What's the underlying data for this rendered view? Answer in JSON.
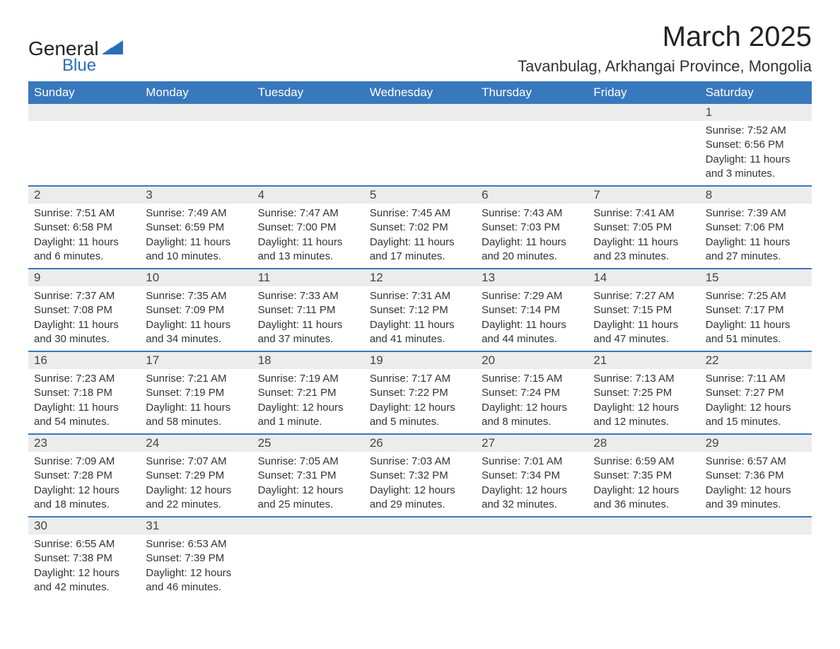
{
  "brand": {
    "text_general": "General",
    "text_blue": "Blue",
    "shape_color": "#2a6eb8",
    "text_color": "#222222"
  },
  "header": {
    "month_title": "March 2025",
    "location": "Tavanbulag, Arkhangai Province, Mongolia"
  },
  "colors": {
    "header_bg": "#3878bd",
    "header_text": "#ffffff",
    "row_divider": "#3878bd",
    "daynum_bg": "#ececec",
    "body_text": "#333333",
    "background": "#ffffff"
  },
  "typography": {
    "month_title_pt": 30,
    "location_pt": 16,
    "weekday_pt": 13,
    "daynum_pt": 13,
    "cell_pt": 11
  },
  "calendar": {
    "type": "table",
    "weekdays": [
      "Sunday",
      "Monday",
      "Tuesday",
      "Wednesday",
      "Thursday",
      "Friday",
      "Saturday"
    ],
    "weeks": [
      [
        null,
        null,
        null,
        null,
        null,
        null,
        {
          "day": "1",
          "sunrise": "7:52 AM",
          "sunset": "6:56 PM",
          "daylight": "11 hours and 3 minutes."
        }
      ],
      [
        {
          "day": "2",
          "sunrise": "7:51 AM",
          "sunset": "6:58 PM",
          "daylight": "11 hours and 6 minutes."
        },
        {
          "day": "3",
          "sunrise": "7:49 AM",
          "sunset": "6:59 PM",
          "daylight": "11 hours and 10 minutes."
        },
        {
          "day": "4",
          "sunrise": "7:47 AM",
          "sunset": "7:00 PM",
          "daylight": "11 hours and 13 minutes."
        },
        {
          "day": "5",
          "sunrise": "7:45 AM",
          "sunset": "7:02 PM",
          "daylight": "11 hours and 17 minutes."
        },
        {
          "day": "6",
          "sunrise": "7:43 AM",
          "sunset": "7:03 PM",
          "daylight": "11 hours and 20 minutes."
        },
        {
          "day": "7",
          "sunrise": "7:41 AM",
          "sunset": "7:05 PM",
          "daylight": "11 hours and 23 minutes."
        },
        {
          "day": "8",
          "sunrise": "7:39 AM",
          "sunset": "7:06 PM",
          "daylight": "11 hours and 27 minutes."
        }
      ],
      [
        {
          "day": "9",
          "sunrise": "7:37 AM",
          "sunset": "7:08 PM",
          "daylight": "11 hours and 30 minutes."
        },
        {
          "day": "10",
          "sunrise": "7:35 AM",
          "sunset": "7:09 PM",
          "daylight": "11 hours and 34 minutes."
        },
        {
          "day": "11",
          "sunrise": "7:33 AM",
          "sunset": "7:11 PM",
          "daylight": "11 hours and 37 minutes."
        },
        {
          "day": "12",
          "sunrise": "7:31 AM",
          "sunset": "7:12 PM",
          "daylight": "11 hours and 41 minutes."
        },
        {
          "day": "13",
          "sunrise": "7:29 AM",
          "sunset": "7:14 PM",
          "daylight": "11 hours and 44 minutes."
        },
        {
          "day": "14",
          "sunrise": "7:27 AM",
          "sunset": "7:15 PM",
          "daylight": "11 hours and 47 minutes."
        },
        {
          "day": "15",
          "sunrise": "7:25 AM",
          "sunset": "7:17 PM",
          "daylight": "11 hours and 51 minutes."
        }
      ],
      [
        {
          "day": "16",
          "sunrise": "7:23 AM",
          "sunset": "7:18 PM",
          "daylight": "11 hours and 54 minutes."
        },
        {
          "day": "17",
          "sunrise": "7:21 AM",
          "sunset": "7:19 PM",
          "daylight": "11 hours and 58 minutes."
        },
        {
          "day": "18",
          "sunrise": "7:19 AM",
          "sunset": "7:21 PM",
          "daylight": "12 hours and 1 minute."
        },
        {
          "day": "19",
          "sunrise": "7:17 AM",
          "sunset": "7:22 PM",
          "daylight": "12 hours and 5 minutes."
        },
        {
          "day": "20",
          "sunrise": "7:15 AM",
          "sunset": "7:24 PM",
          "daylight": "12 hours and 8 minutes."
        },
        {
          "day": "21",
          "sunrise": "7:13 AM",
          "sunset": "7:25 PM",
          "daylight": "12 hours and 12 minutes."
        },
        {
          "day": "22",
          "sunrise": "7:11 AM",
          "sunset": "7:27 PM",
          "daylight": "12 hours and 15 minutes."
        }
      ],
      [
        {
          "day": "23",
          "sunrise": "7:09 AM",
          "sunset": "7:28 PM",
          "daylight": "12 hours and 18 minutes."
        },
        {
          "day": "24",
          "sunrise": "7:07 AM",
          "sunset": "7:29 PM",
          "daylight": "12 hours and 22 minutes."
        },
        {
          "day": "25",
          "sunrise": "7:05 AM",
          "sunset": "7:31 PM",
          "daylight": "12 hours and 25 minutes."
        },
        {
          "day": "26",
          "sunrise": "7:03 AM",
          "sunset": "7:32 PM",
          "daylight": "12 hours and 29 minutes."
        },
        {
          "day": "27",
          "sunrise": "7:01 AM",
          "sunset": "7:34 PM",
          "daylight": "12 hours and 32 minutes."
        },
        {
          "day": "28",
          "sunrise": "6:59 AM",
          "sunset": "7:35 PM",
          "daylight": "12 hours and 36 minutes."
        },
        {
          "day": "29",
          "sunrise": "6:57 AM",
          "sunset": "7:36 PM",
          "daylight": "12 hours and 39 minutes."
        }
      ],
      [
        {
          "day": "30",
          "sunrise": "6:55 AM",
          "sunset": "7:38 PM",
          "daylight": "12 hours and 42 minutes."
        },
        {
          "day": "31",
          "sunrise": "6:53 AM",
          "sunset": "7:39 PM",
          "daylight": "12 hours and 46 minutes."
        },
        null,
        null,
        null,
        null,
        null
      ]
    ],
    "labels": {
      "sunrise_prefix": "Sunrise: ",
      "sunset_prefix": "Sunset: ",
      "daylight_prefix": "Daylight: "
    }
  }
}
